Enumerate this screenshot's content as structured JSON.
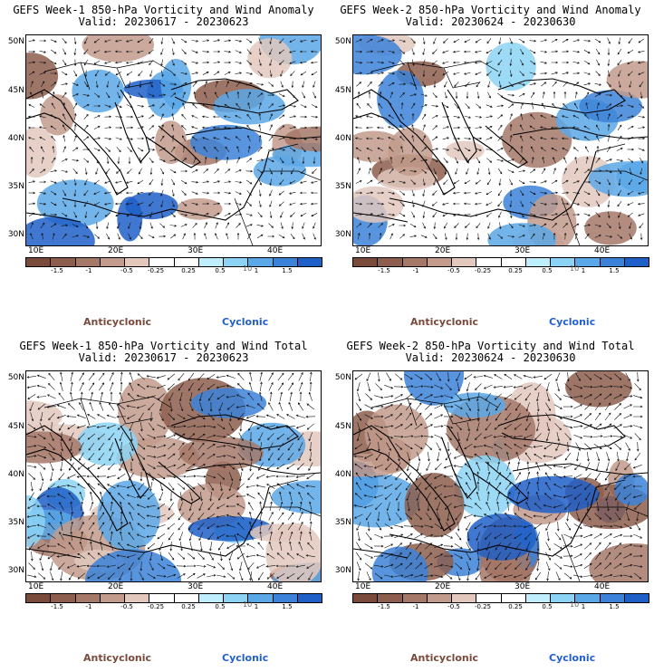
{
  "panels": [
    {
      "title": "GEFS Week-1 850-hPa Vorticity and Wind Anomaly",
      "valid": "Valid: 20230617 - 20230623",
      "field": "anomaly",
      "seed": 11
    },
    {
      "title": "GEFS Week-2 850-hPa Vorticity and Wind Anomaly",
      "valid": "Valid: 20230624 - 20230630",
      "field": "anomaly",
      "seed": 23
    },
    {
      "title": "GEFS Week-1 850-hPa Vorticity and Wind Total",
      "valid": "Valid: 20230617 - 20230623",
      "field": "total",
      "seed": 37
    },
    {
      "title": "GEFS Week-2 850-hPa Vorticity and Wind Total",
      "valid": "Valid: 20230624 - 20230630",
      "field": "total",
      "seed": 53
    }
  ],
  "latitude_labels": [
    "50N",
    "45N",
    "40N",
    "35N",
    "30N"
  ],
  "longitude_labels": [
    "10E",
    "20E",
    "30E",
    "40E"
  ],
  "colorbar": {
    "colors": [
      "#7a4a3a",
      "#8d5e4e",
      "#a57868",
      "#c29b8c",
      "#e2c8bd",
      "#ffffff",
      "#ffffff",
      "#bfefff",
      "#8cd3f5",
      "#5aa8e8",
      "#3b82d8",
      "#1f5fc8"
    ],
    "tick_labels": [
      "-1.5",
      "-1",
      "-0.5",
      "-0.25",
      "0.25",
      "0.5",
      "1",
      "1.5"
    ],
    "scale_label": "10"
  },
  "legend": {
    "anticyclonic": "Anticyclonic",
    "cyclonic": "Cyclonic",
    "anticyclonic_color": "#7a4a3a",
    "cyclonic_color": "#2260d0"
  }
}
